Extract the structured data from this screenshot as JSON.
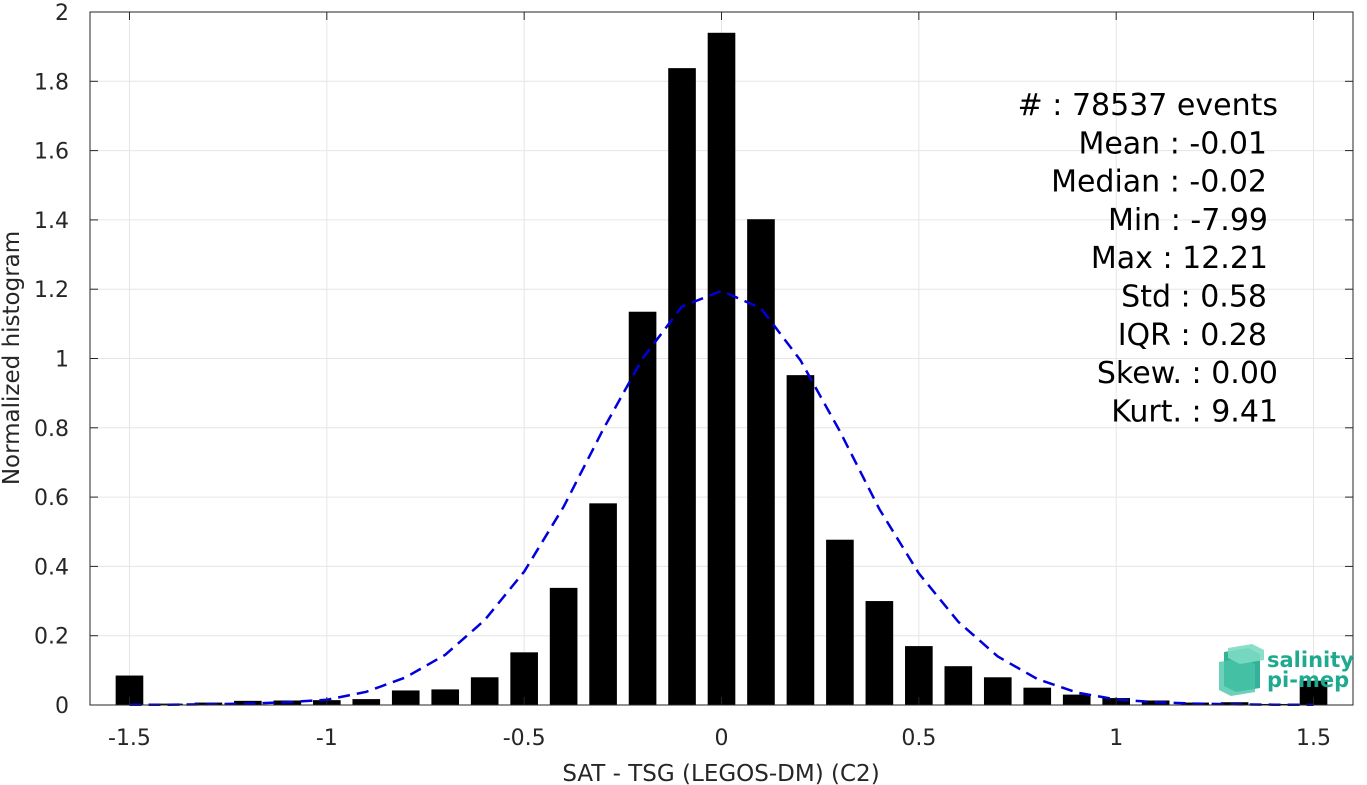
{
  "chart_data": {
    "type": "bar",
    "title": "",
    "xlabel": "SAT - TSG (LEGOS-DM) (C2)",
    "ylabel": "Normalized histogram",
    "xlim": [
      -1.6,
      1.6
    ],
    "ylim": [
      0,
      2
    ],
    "grid": true,
    "xticks": [
      -1.5,
      -1,
      -0.5,
      0,
      0.5,
      1,
      1.5
    ],
    "xtick_labels": [
      "-1.5",
      "-1",
      "-0.5",
      "0",
      "0.5",
      "1",
      "1.5"
    ],
    "yticks": [
      0,
      0.2,
      0.4,
      0.6,
      0.8,
      1,
      1.2,
      1.4,
      1.6,
      1.8,
      2
    ],
    "ytick_labels": [
      "0",
      "0.2",
      "0.4",
      "0.6",
      "0.8",
      "1",
      "1.2",
      "1.4",
      "1.6",
      "1.8",
      "2"
    ],
    "bar_width": 0.07,
    "x": [
      -1.5,
      -1.4,
      -1.3,
      -1.2,
      -1.1,
      -1.0,
      -0.9,
      -0.8,
      -0.7,
      -0.6,
      -0.5,
      -0.4,
      -0.3,
      -0.2,
      -0.1,
      0.0,
      0.1,
      0.2,
      0.3,
      0.4,
      0.5,
      0.6,
      0.7,
      0.8,
      0.9,
      1.0,
      1.1,
      1.2,
      1.3,
      1.4,
      1.5
    ],
    "values": [
      0.085,
      0.004,
      0.007,
      0.012,
      0.013,
      0.014,
      0.017,
      0.042,
      0.045,
      0.08,
      0.152,
      0.338,
      0.582,
      1.135,
      1.838,
      1.94,
      1.402,
      0.952,
      0.477,
      0.3,
      0.17,
      0.112,
      0.08,
      0.05,
      0.03,
      0.02,
      0.013,
      0.007,
      0.008,
      0.003,
      0.07
    ],
    "bar_color": "#000000",
    "fit_curve": {
      "style": "dashed",
      "color": "#0000dd",
      "x": [
        -1.5,
        -1.4,
        -1.3,
        -1.2,
        -1.1,
        -1.0,
        -0.9,
        -0.8,
        -0.7,
        -0.6,
        -0.5,
        -0.4,
        -0.3,
        -0.2,
        -0.1,
        0.0,
        0.1,
        0.2,
        0.3,
        0.4,
        0.5,
        0.6,
        0.7,
        0.8,
        0.9,
        1.0,
        1.1,
        1.2,
        1.3,
        1.4,
        1.5
      ],
      "y": [
        0.001,
        0.001,
        0.002,
        0.004,
        0.008,
        0.015,
        0.038,
        0.08,
        0.145,
        0.245,
        0.385,
        0.572,
        0.795,
        1.0,
        1.15,
        1.195,
        1.145,
        0.995,
        0.79,
        0.565,
        0.38,
        0.24,
        0.14,
        0.075,
        0.036,
        0.016,
        0.008,
        0.004,
        0.002,
        0.001,
        0.001
      ]
    },
    "annotations": [
      "#  : 78537 events",
      "Mean : -0.01",
      "Median : -0.02",
      "Min : -7.99",
      "Max : 12.21",
      "Std : 0.58",
      "IQR : 0.28",
      "Skew. : 0.00",
      "Kurt. : 9.41"
    ]
  },
  "logo": {
    "line1": "salinity",
    "line2": "pi-mep",
    "icon": "salinity-logo-icon",
    "color": "#1fa98f"
  }
}
